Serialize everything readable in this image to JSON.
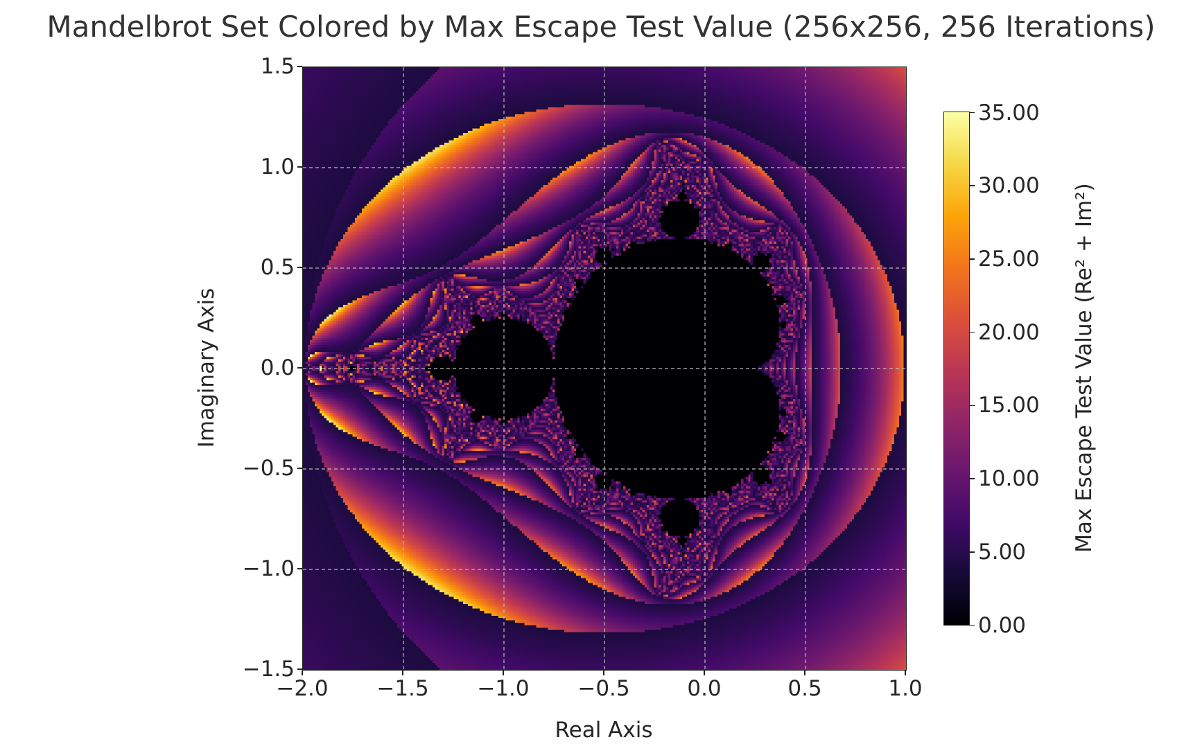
{
  "chart_data": {
    "type": "heatmap",
    "title": "Mandelbrot Set Colored by Max Escape Test Value (256x256, 256 Iterations)",
    "xlabel": "Real Axis",
    "ylabel": "Imaginary Axis",
    "xlim": [
      -2.0,
      1.0
    ],
    "ylim": [
      -1.5,
      1.5
    ],
    "resolution": 256,
    "max_iterations": 256,
    "x_ticks": [
      "−2.0",
      "−1.5",
      "−1.0",
      "−0.5",
      "0.0",
      "0.5",
      "1.0"
    ],
    "x_tick_values": [
      -2.0,
      -1.5,
      -1.0,
      -0.5,
      0.0,
      0.5,
      1.0
    ],
    "y_ticks": [
      "1.5",
      "1.0",
      "0.5",
      "0.0",
      "−0.5",
      "−1.0",
      "−1.5"
    ],
    "y_tick_values": [
      1.5,
      1.0,
      0.5,
      0.0,
      -0.5,
      -1.0,
      -1.5
    ],
    "grid": true,
    "colormap": "inferno",
    "colorbar": {
      "label": "Max Escape Test Value (Re² + Im²)",
      "range": [
        0,
        35
      ],
      "ticks": [
        "35.00",
        "30.00",
        "25.00",
        "20.00",
        "15.00",
        "10.00",
        "5.00",
        "0.00"
      ],
      "tick_values": [
        35,
        30,
        25,
        20,
        15,
        10,
        5,
        0
      ]
    }
  }
}
